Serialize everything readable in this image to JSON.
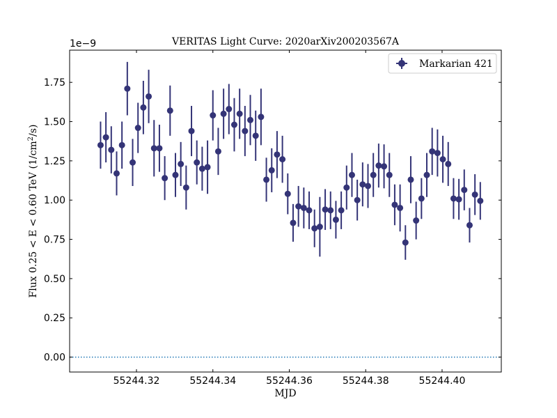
{
  "chart_data": {
    "type": "scatter",
    "title": "VERITAS Light Curve: 2020arXiv200203567A",
    "xlabel": "MJD",
    "ylabel_main": "Flux 0.25 < E < 0.60 TeV (1/cm",
    "ylabel_sup": "2",
    "ylabel_tail": "/s)",
    "y_multiplier_label": "1e−9",
    "y_scale": 1e-09,
    "xlim": [
      55244.3025,
      55244.4155
    ],
    "ylim": [
      -0.095,
      1.955
    ],
    "x_ticks": [
      55244.32,
      55244.34,
      55244.36,
      55244.38,
      55244.4
    ],
    "x_tick_labels": [
      "55244.32",
      "55244.34",
      "55244.36",
      "55244.38",
      "55244.40"
    ],
    "y_ticks": [
      0.0,
      0.25,
      0.5,
      0.75,
      1.0,
      1.25,
      1.5,
      1.75
    ],
    "y_tick_labels": [
      "0.00",
      "0.25",
      "0.50",
      "0.75",
      "1.00",
      "1.25",
      "1.50",
      "1.75"
    ],
    "grid": false,
    "legend_position": "top-right",
    "zero_line": {
      "y": 0,
      "style": "dotted",
      "color": "#1f77b4"
    },
    "series": [
      {
        "name": "Markarian 421",
        "color": "#343477",
        "marker": "circle",
        "x": [
          55244.3106,
          55244.312,
          55244.3134,
          55244.3148,
          55244.3162,
          55244.3176,
          55244.319,
          55244.3204,
          55244.3218,
          55244.3232,
          55244.3246,
          55244.326,
          55244.3274,
          55244.3288,
          55244.3302,
          55244.3316,
          55244.333,
          55244.3344,
          55244.3358,
          55244.3372,
          55244.3386,
          55244.34,
          55244.3414,
          55244.3428,
          55244.3442,
          55244.3456,
          55244.347,
          55244.3484,
          55244.3498,
          55244.3512,
          55244.3526,
          55244.354,
          55244.3554,
          55244.3568,
          55244.3582,
          55244.3596,
          55244.361,
          55244.3624,
          55244.3638,
          55244.3652,
          55244.3666,
          55244.368,
          55244.3694,
          55244.3708,
          55244.3722,
          55244.3736,
          55244.375,
          55244.3764,
          55244.3778,
          55244.3792,
          55244.3806,
          55244.382,
          55244.3834,
          55244.3848,
          55244.3862,
          55244.3876,
          55244.389,
          55244.3904,
          55244.3918,
          55244.3932,
          55244.3946,
          55244.396,
          55244.3974,
          55244.3988,
          55244.4002,
          55244.4016,
          55244.403,
          55244.4044,
          55244.4058,
          55244.4072,
          55244.4086,
          55244.41
        ],
        "y": [
          1.35,
          1.4,
          1.32,
          1.17,
          1.35,
          1.71,
          1.24,
          1.46,
          1.59,
          1.66,
          1.33,
          1.33,
          1.14,
          1.57,
          1.16,
          1.23,
          1.08,
          1.44,
          1.24,
          1.2,
          1.21,
          1.54,
          1.31,
          1.55,
          1.58,
          1.48,
          1.55,
          1.44,
          1.51,
          1.41,
          1.53,
          1.13,
          1.19,
          1.29,
          1.26,
          1.04,
          0.855,
          0.96,
          0.95,
          0.935,
          0.82,
          0.83,
          0.94,
          0.935,
          0.875,
          0.935,
          1.08,
          1.16,
          1.0,
          1.1,
          1.09,
          1.16,
          1.22,
          1.215,
          1.16,
          0.97,
          0.95,
          0.73,
          1.13,
          0.87,
          1.01,
          1.16,
          1.31,
          1.3,
          1.26,
          1.23,
          1.01,
          1.005,
          1.065,
          0.84,
          1.035,
          0.995
        ],
        "yerr": [
          0.15,
          0.16,
          0.15,
          0.14,
          0.15,
          0.17,
          0.15,
          0.16,
          0.17,
          0.17,
          0.18,
          0.15,
          0.14,
          0.16,
          0.14,
          0.14,
          0.14,
          0.16,
          0.14,
          0.14,
          0.17,
          0.16,
          0.15,
          0.16,
          0.16,
          0.17,
          0.16,
          0.16,
          0.16,
          0.16,
          0.18,
          0.14,
          0.14,
          0.15,
          0.15,
          0.13,
          0.12,
          0.13,
          0.13,
          0.12,
          0.12,
          0.19,
          0.13,
          0.12,
          0.12,
          0.12,
          0.14,
          0.14,
          0.13,
          0.14,
          0.14,
          0.14,
          0.14,
          0.14,
          0.14,
          0.13,
          0.15,
          0.11,
          0.15,
          0.12,
          0.13,
          0.14,
          0.15,
          0.15,
          0.15,
          0.14,
          0.13,
          0.13,
          0.13,
          0.11,
          0.13,
          0.12
        ]
      }
    ]
  }
}
